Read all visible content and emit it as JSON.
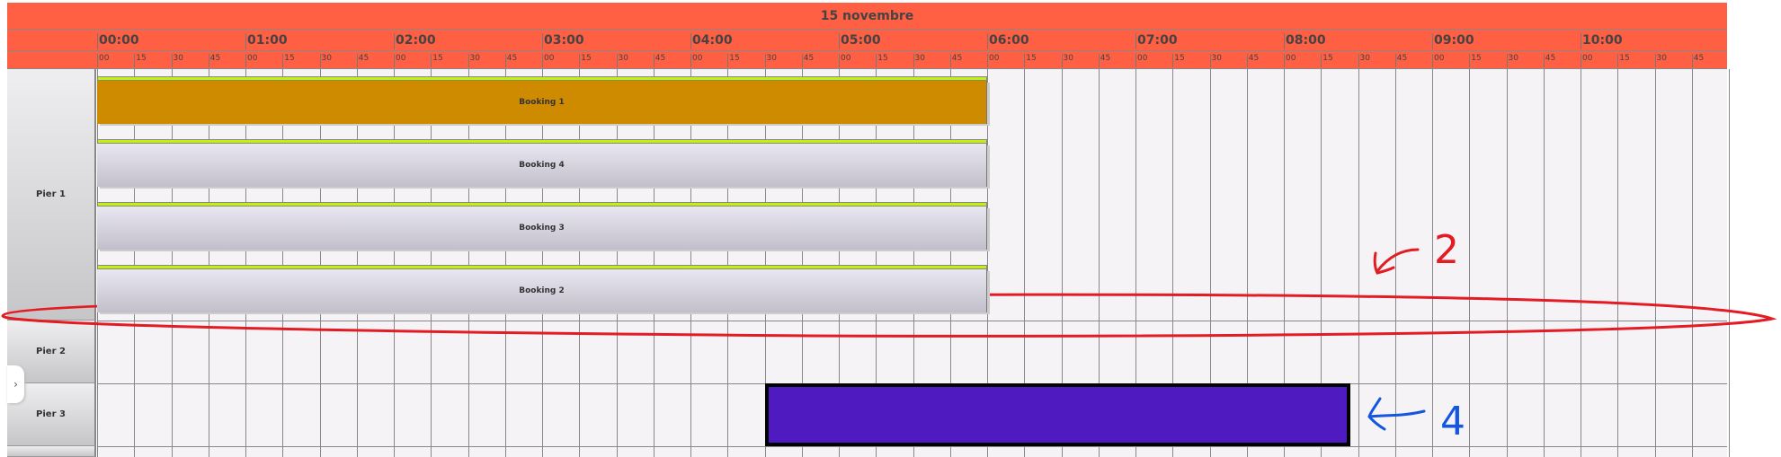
{
  "header": {
    "date": "15 novembre",
    "hours": [
      "00:00",
      "01:00",
      "02:00",
      "03:00",
      "04:00",
      "05:00",
      "06:00",
      "07:00",
      "08:00",
      "09:00",
      "10:00"
    ],
    "minutes": [
      "00",
      "15",
      "30",
      "45"
    ]
  },
  "rows": [
    {
      "label": "Pier 1",
      "bookings": [
        {
          "label": "Booking 1",
          "start": "00:00",
          "end": "06:00",
          "selected": true
        },
        {
          "label": "Booking 4",
          "start": "00:00",
          "end": "06:00",
          "selected": false
        },
        {
          "label": "Booking 3",
          "start": "00:00",
          "end": "06:00",
          "selected": false
        },
        {
          "label": "Booking 2",
          "start": "00:00",
          "end": "06:00",
          "selected": false
        }
      ]
    },
    {
      "label": "Pier 2",
      "bookings": []
    },
    {
      "label": "Pier 3",
      "bookings": [],
      "block": {
        "start": "04:30",
        "end": "08:27",
        "color": "#4f1abf"
      }
    }
  ],
  "colors": {
    "header": "#ff5f42",
    "selected_booking": "#cf8b00",
    "booking_top": "#c4f00c",
    "annotation_red": "#e31b23",
    "annotation_blue": "#1356e0"
  },
  "annotations": [
    {
      "text": "2",
      "color": "red"
    },
    {
      "text": "4",
      "color": "blue"
    }
  ],
  "sidebar_toggle": {
    "icon": "chevron-right-icon",
    "glyph": "›"
  }
}
